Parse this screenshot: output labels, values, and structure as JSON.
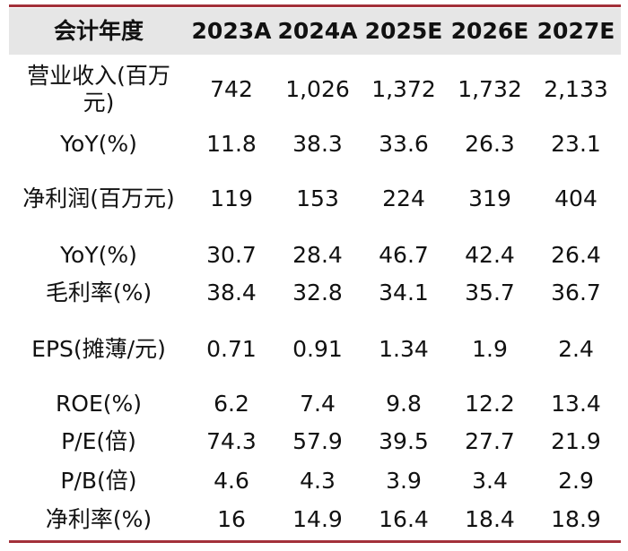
{
  "table": {
    "header": [
      "会计年度",
      "2023A",
      "2024A",
      "2025E",
      "2026E",
      "2027E"
    ],
    "rows": [
      {
        "label": "营业收入(百万元)",
        "values": [
          "742",
          "1,026",
          "1,372",
          "1,732",
          "2,133"
        ]
      },
      {
        "label": "YoY(%)",
        "values": [
          "11.8",
          "38.3",
          "33.6",
          "26.3",
          "23.1"
        ]
      },
      {
        "label": "净利润(百万元)",
        "values": [
          "119",
          "153",
          "224",
          "319",
          "404"
        ]
      },
      {
        "label": "YoY(%)",
        "values": [
          "30.7",
          "28.4",
          "46.7",
          "42.4",
          "26.4"
        ]
      },
      {
        "label": "毛利率(%)",
        "values": [
          "38.4",
          "32.8",
          "34.1",
          "35.7",
          "36.7"
        ]
      },
      {
        "label": "EPS(摊薄/元)",
        "values": [
          "0.71",
          "0.91",
          "1.34",
          "1.9",
          "2.4"
        ]
      },
      {
        "label": "ROE(%)",
        "values": [
          "6.2",
          "7.4",
          "9.8",
          "12.2",
          "13.4"
        ]
      },
      {
        "label": "P/E(倍)",
        "values": [
          "74.3",
          "57.9",
          "39.5",
          "27.7",
          "21.9"
        ]
      },
      {
        "label": "P/B(倍)",
        "values": [
          "4.6",
          "4.3",
          "3.9",
          "3.4",
          "2.9"
        ]
      },
      {
        "label": "净利率(%)",
        "values": [
          "16",
          "14.9",
          "16.4",
          "18.4",
          "18.9"
        ]
      }
    ]
  }
}
